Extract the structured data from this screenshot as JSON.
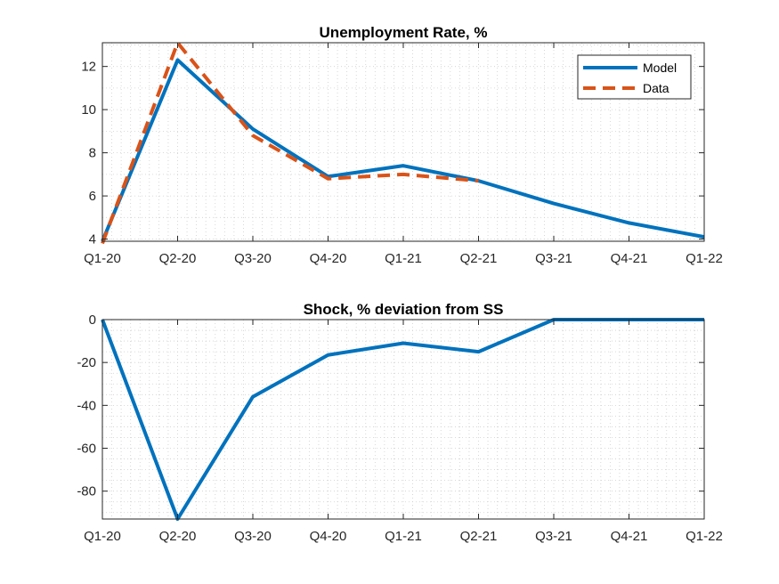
{
  "chart_data": [
    {
      "type": "line",
      "title": "Unemployment Rate, %",
      "categories": [
        "Q1-20",
        "Q2-20",
        "Q3-20",
        "Q4-20",
        "Q1-21",
        "Q2-21",
        "Q3-21",
        "Q4-21",
        "Q1-22"
      ],
      "xlabel": "",
      "ylabel": "",
      "ylim": [
        3.9,
        13.1
      ],
      "yticks": [
        4,
        6,
        8,
        10,
        12
      ],
      "grid": "minor dotted",
      "legend_position": "top-right",
      "series": [
        {
          "name": "Model",
          "style": "solid",
          "color": "#0072BD",
          "values": [
            3.9,
            12.3,
            9.1,
            6.9,
            7.4,
            6.7,
            5.65,
            4.75,
            4.1
          ]
        },
        {
          "name": "Data",
          "style": "dashed",
          "color": "#D95319",
          "values": [
            3.8,
            13.1,
            8.8,
            6.8,
            7.0,
            6.7,
            null,
            null,
            null
          ]
        }
      ]
    },
    {
      "type": "line",
      "title": "Shock, % deviation from SS",
      "categories": [
        "Q1-20",
        "Q2-20",
        "Q3-20",
        "Q4-20",
        "Q1-21",
        "Q2-21",
        "Q3-21",
        "Q4-21",
        "Q1-22"
      ],
      "xlabel": "",
      "ylabel": "",
      "ylim": [
        -93,
        0
      ],
      "yticks": [
        0,
        -20,
        -40,
        -60,
        -80
      ],
      "grid": "minor dotted",
      "series": [
        {
          "color": "#0072BD",
          "style": "solid",
          "values": [
            0,
            -93,
            -36,
            -16.5,
            -11,
            -15,
            0,
            0,
            0
          ]
        }
      ]
    }
  ]
}
